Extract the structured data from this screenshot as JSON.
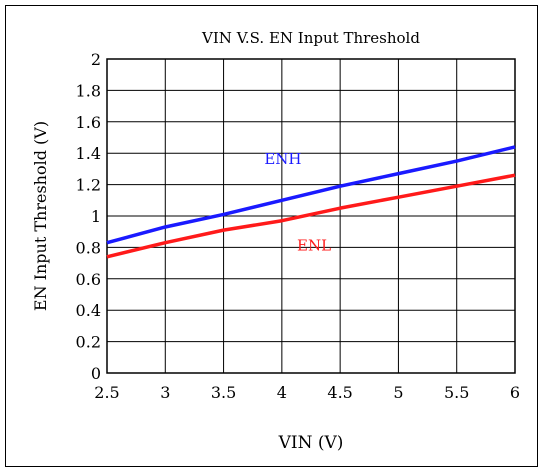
{
  "chart_data": {
    "type": "line",
    "title": "VIN V.S. EN Input Threshold",
    "xlabel": "VIN (V)",
    "ylabel": "EN Input Threshold (V)",
    "xlim": [
      2.5,
      6
    ],
    "ylim": [
      0,
      2
    ],
    "x_ticks": [
      "2.5",
      "3",
      "3.5",
      "4",
      "4.5",
      "5",
      "5.5",
      "6"
    ],
    "y_ticks": [
      "0",
      "0.2",
      "0.4",
      "0.6",
      "0.8",
      "1",
      "1.2",
      "1.4",
      "1.6",
      "1.8",
      "2"
    ],
    "grid": true,
    "series": [
      {
        "name": "ENH",
        "color": "#1a1aff",
        "x": [
          2.5,
          3,
          3.5,
          4,
          4.5,
          5,
          5.5,
          6
        ],
        "y": [
          0.83,
          0.93,
          1.01,
          1.1,
          1.19,
          1.27,
          1.35,
          1.44
        ]
      },
      {
        "name": "ENL",
        "color": "#ff1a1a",
        "x": [
          2.5,
          3,
          3.5,
          4,
          4.5,
          5,
          5.5,
          6
        ],
        "y": [
          0.74,
          0.83,
          0.91,
          0.97,
          1.05,
          1.12,
          1.19,
          1.26
        ]
      }
    ]
  }
}
